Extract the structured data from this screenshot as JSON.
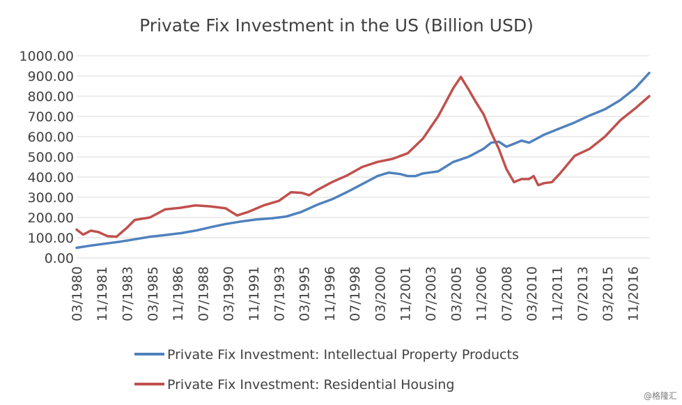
{
  "watermark": "@格隆汇",
  "chart_data": {
    "type": "line",
    "title": "Private Fix Investment in the US (Billion USD)",
    "ylim": [
      0,
      1000
    ],
    "y_ticks": [
      "0.00",
      "100.00",
      "200.00",
      "300.00",
      "400.00",
      "500.00",
      "600.00",
      "700.00",
      "800.00",
      "900.00",
      "1000.00"
    ],
    "y_tick_values": [
      0,
      100,
      200,
      300,
      400,
      500,
      600,
      700,
      800,
      900,
      1000
    ],
    "grid": true,
    "legend_position": "bottom",
    "x_tick_labels": [
      "03/1980",
      "11/1981",
      "07/1983",
      "03/1985",
      "11/1986",
      "07/1988",
      "03/1990",
      "11/1991",
      "07/1993",
      "03/1995",
      "11/1996",
      "07/1998",
      "03/2000",
      "11/2001",
      "07/2003",
      "03/2005",
      "11/2006",
      "07/2008",
      "03/2010",
      "11/2011",
      "07/2013",
      "03/2015",
      "11/2016"
    ],
    "x_tick_years": [
      1980.17,
      1981.83,
      1983.5,
      1985.17,
      1986.83,
      1988.5,
      1990.17,
      1991.83,
      1993.5,
      1995.17,
      1996.83,
      1998.5,
      2000.17,
      2001.83,
      2003.5,
      2005.17,
      2006.83,
      2008.5,
      2010.17,
      2011.83,
      2013.5,
      2015.17,
      2016.83
    ],
    "x_range": [
      1980.17,
      2017.92
    ],
    "series": [
      {
        "name": "Private Fix Investment: Intellectual Property Products",
        "color": "#4f81bd",
        "x": [
          1980.17,
          1981,
          1982,
          1983,
          1984,
          1985,
          1986,
          1987,
          1988,
          1989,
          1990,
          1991,
          1992,
          1993,
          1994,
          1995,
          1996,
          1997,
          1998,
          1999,
          2000,
          2000.75,
          2001.5,
          2002,
          2002.5,
          2003,
          2004,
          2005,
          2006,
          2007,
          2007.5,
          2008,
          2008.5,
          2009,
          2009.5,
          2010,
          2010.5,
          2011,
          2012,
          2013,
          2014,
          2015,
          2016,
          2017,
          2017.92
        ],
        "y": [
          50,
          60,
          70,
          80,
          92,
          105,
          113,
          122,
          135,
          152,
          168,
          180,
          190,
          196,
          205,
          228,
          262,
          290,
          326,
          365,
          405,
          422,
          415,
          405,
          405,
          418,
          428,
          475,
          500,
          540,
          570,
          575,
          550,
          565,
          580,
          570,
          590,
          610,
          640,
          670,
          705,
          735,
          780,
          840,
          915
        ]
      },
      {
        "name": "Private Fix Investment: Residential Housing",
        "color": "#c0504d",
        "x": [
          1980.17,
          1980.6,
          1981.1,
          1981.6,
          1982.2,
          1982.8,
          1983.5,
          1984,
          1985,
          1986,
          1987,
          1988,
          1989,
          1990,
          1990.75,
          1991.5,
          1992.5,
          1993.5,
          1994.3,
          1995,
          1995.5,
          1996,
          1997,
          1998,
          1999,
          2000,
          2001,
          2002,
          2003,
          2003.5,
          2004,
          2005,
          2005.5,
          2006,
          2006.5,
          2007,
          2007.5,
          2008,
          2008.5,
          2009,
          2009.5,
          2010,
          2010.3,
          2010.6,
          2011,
          2011.5,
          2012,
          2013,
          2014,
          2015,
          2016,
          2017,
          2017.92
        ],
        "y": [
          140,
          115,
          135,
          128,
          108,
          105,
          150,
          188,
          200,
          240,
          248,
          260,
          255,
          245,
          210,
          228,
          260,
          282,
          325,
          322,
          310,
          335,
          375,
          408,
          450,
          475,
          490,
          518,
          590,
          645,
          700,
          840,
          895,
          835,
          770,
          710,
          620,
          540,
          440,
          375,
          390,
          390,
          405,
          360,
          370,
          375,
          415,
          505,
          540,
          600,
          680,
          740,
          800
        ]
      }
    ]
  }
}
